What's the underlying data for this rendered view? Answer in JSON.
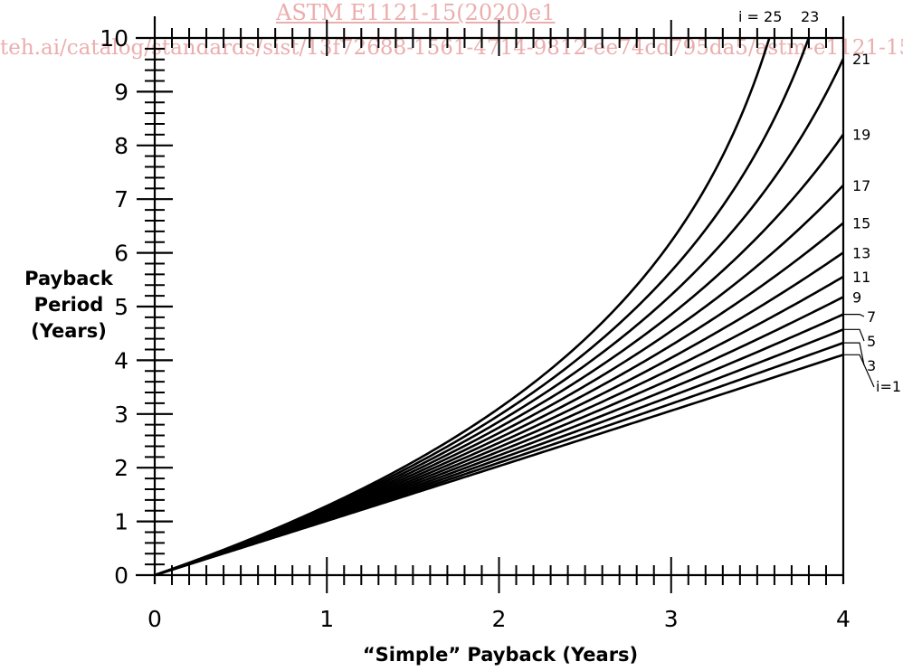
{
  "watermark": {
    "line1": "ASTM E1121-15(2020)e1",
    "line2": "teh.ai/catalog/standards/sist/13f72688-1561-4714-9812-ee74cd795da5/astm-e1121-15"
  },
  "chart_data": {
    "type": "line",
    "title": "",
    "xlabel": "“Simple” Payback (Years)",
    "ylabel_lines": [
      "Payback",
      "Period",
      "(Years)"
    ],
    "xlim": [
      0,
      4
    ],
    "ylim": [
      0,
      10
    ],
    "x_ticks": [
      "0",
      "1",
      "2",
      "3",
      "4"
    ],
    "y_ticks": [
      "0",
      "1",
      "2",
      "3",
      "4",
      "5",
      "6",
      "7",
      "8",
      "9",
      "10"
    ],
    "series": [
      {
        "name": "i=1",
        "label": "i=1",
        "rate": 0.01
      },
      {
        "name": "3",
        "label": "3",
        "rate": 0.03
      },
      {
        "name": "5",
        "label": "5",
        "rate": 0.05
      },
      {
        "name": "7",
        "label": "7",
        "rate": 0.07
      },
      {
        "name": "9",
        "label": "9",
        "rate": 0.09
      },
      {
        "name": "11",
        "label": "11",
        "rate": 0.11
      },
      {
        "name": "13",
        "label": "13",
        "rate": 0.13
      },
      {
        "name": "15",
        "label": "15",
        "rate": 0.15
      },
      {
        "name": "17",
        "label": "17",
        "rate": 0.17
      },
      {
        "name": "19",
        "label": "19",
        "rate": 0.19
      },
      {
        "name": "21",
        "label": "21",
        "rate": 0.21
      },
      {
        "name": "23",
        "label": "23",
        "rate": 0.23
      },
      {
        "name": "i = 25",
        "label": "i = 25",
        "rate": 0.25
      }
    ]
  }
}
